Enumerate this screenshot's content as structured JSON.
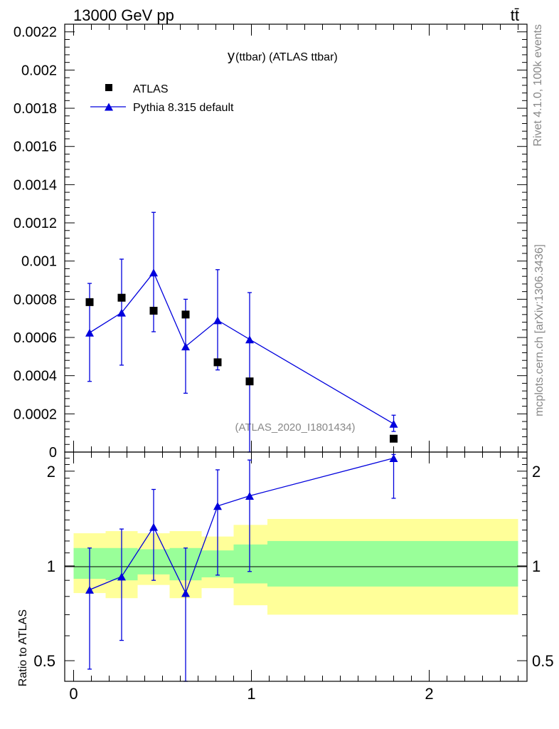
{
  "header": {
    "energy_label": "13000 GeV pp",
    "process_label": "tt̄"
  },
  "side_labels": {
    "rivet": "Rivet 4.1.0,  100k events",
    "mcplots": "mcplots.cern.ch [arXiv:1306.3436]"
  },
  "chart_data": [
    {
      "type": "scatter",
      "title": "y(ttbar) (ATLAS ttbar)",
      "title_prefix": "y",
      "title_rest": "(ttbar) (ATLAS ttbar)",
      "watermark": "(ATLAS_2020_I1801434)",
      "xlim": [
        -0.05,
        2.55
      ],
      "ylim": [
        0,
        0.00224
      ],
      "yticks": [
        0,
        0.0002,
        0.0004,
        0.0006,
        0.0008,
        0.001,
        0.0012,
        0.0014,
        0.0016,
        0.0018,
        0.002,
        0.0022
      ],
      "ytick_labels": [
        "0",
        "0.0002",
        "0.0004",
        "0.0006",
        "0.0008",
        "0.001",
        "0.0012",
        "0.0014",
        "0.0016",
        "0.0018",
        "0.002",
        "0.0022"
      ],
      "legend_position": "top-left",
      "series": [
        {
          "name": "ATLAS",
          "color": "#000000",
          "marker": "square",
          "x": [
            0.09,
            0.27,
            0.45,
            0.63,
            0.81,
            0.99,
            1.8
          ],
          "y": [
            0.000785,
            0.000808,
            0.00074,
            0.00072,
            0.00047,
            0.00037,
            7e-05
          ]
        },
        {
          "name": "Pythia 8.315 default",
          "color": "#0000dd",
          "marker": "triangle",
          "x": [
            0.09,
            0.27,
            0.45,
            0.63,
            0.81,
            0.99,
            1.8
          ],
          "y": [
            0.000625,
            0.00073,
            0.00094,
            0.000553,
            0.00069,
            0.00059,
            0.000148
          ],
          "yerr_low": [
            0.000255,
            0.000275,
            0.00031,
            0.000245,
            0.00026,
            0.00059,
            4e-05
          ],
          "yerr_high": [
            0.000258,
            0.00028,
            0.000315,
            0.000247,
            0.000265,
            0.000245,
            4.5e-05
          ]
        }
      ]
    },
    {
      "type": "line",
      "ylabel": "Ratio to ATLAS",
      "xlim": [
        -0.05,
        2.55
      ],
      "ylim": [
        0.43,
        2.3
      ],
      "ylog": true,
      "xticks": [
        0,
        1,
        2
      ],
      "xtick_labels": [
        "0",
        "1",
        "2"
      ],
      "yticks": [
        0.5,
        1,
        2
      ],
      "ytick_labels": [
        "0.5",
        "1",
        "2"
      ],
      "bands": {
        "edges": [
          0,
          0.18,
          0.36,
          0.54,
          0.72,
          0.9,
          1.09,
          2.5
        ],
        "outer_low": [
          0.82,
          0.79,
          0.87,
          0.79,
          0.85,
          0.75,
          0.7
        ],
        "outer_high": [
          1.27,
          1.29,
          1.27,
          1.29,
          1.24,
          1.35,
          1.41
        ],
        "inner_low": [
          0.91,
          0.9,
          0.94,
          0.9,
          0.92,
          0.88,
          0.86
        ],
        "inner_high": [
          1.14,
          1.14,
          1.13,
          1.14,
          1.12,
          1.17,
          1.2
        ],
        "outer_color": "#ffff99",
        "inner_color": "#99ff99"
      },
      "series": [
        {
          "name": "Pythia 8.315 default",
          "color": "#0000dd",
          "x": [
            0.09,
            0.27,
            0.45,
            0.63,
            0.81,
            0.99,
            1.8
          ],
          "y": [
            0.84,
            0.925,
            1.33,
            0.82,
            1.55,
            1.67,
            2.2
          ],
          "yerr_low": [
            0.37,
            0.345,
            0.43,
            0.435,
            0.615,
            0.71,
            0.56
          ],
          "yerr_high": [
            0.3,
            0.385,
            0.42,
            0.32,
            0.47,
            0.5,
            0.06
          ]
        }
      ]
    }
  ]
}
